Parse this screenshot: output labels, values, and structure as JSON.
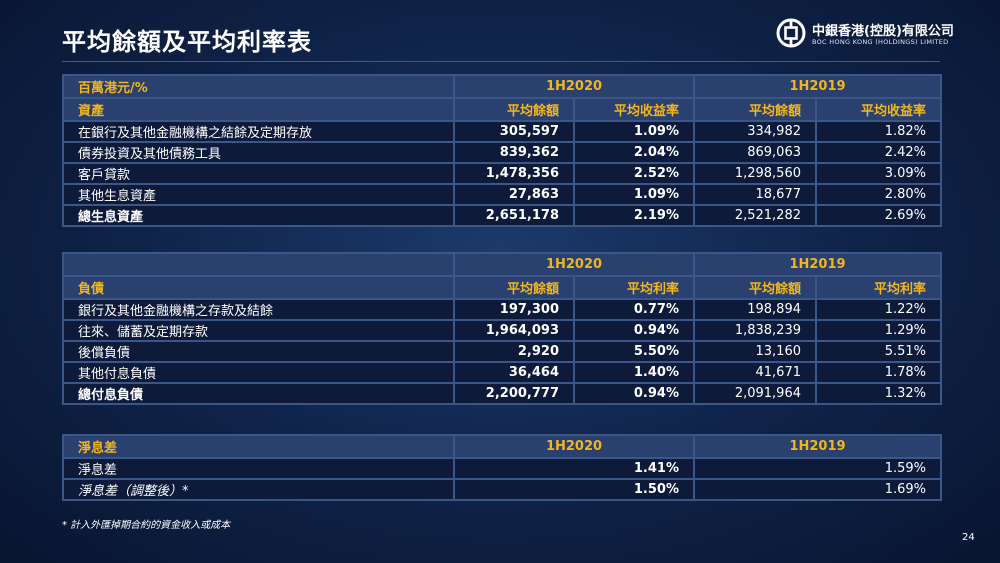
{
  "page": {
    "title": "平均餘額及平均利率表",
    "page_number": "24",
    "footnote": "* 計入外匯掉期合約的資金收入或成本"
  },
  "logo": {
    "name_cn": "中銀香港(控股)有限公司",
    "name_en": "BOC HONG KONG (HOLDINGS) LIMITED"
  },
  "assets": {
    "unit": "百萬港元/%",
    "period_current": "1H2020",
    "period_prior": "1H2019",
    "section_label": "資產",
    "col_balance": "平均餘額",
    "col_rate": "平均收益率",
    "rows": [
      {
        "label": "在銀行及其他金融機構之結餘及定期存放",
        "cur_bal": "305,597",
        "cur_rate": "1.09%",
        "pri_bal": "334,982",
        "pri_rate": "1.82%"
      },
      {
        "label": "債券投資及其他債務工具",
        "cur_bal": "839,362",
        "cur_rate": "2.04%",
        "pri_bal": "869,063",
        "pri_rate": "2.42%"
      },
      {
        "label": "客戶貸款",
        "cur_bal": "1,478,356",
        "cur_rate": "2.52%",
        "pri_bal": "1,298,560",
        "pri_rate": "3.09%"
      },
      {
        "label": "其他生息資產",
        "cur_bal": "27,863",
        "cur_rate": "1.09%",
        "pri_bal": "18,677",
        "pri_rate": "2.80%"
      },
      {
        "label": "總生息資產",
        "cur_bal": "2,651,178",
        "cur_rate": "2.19%",
        "pri_bal": "2,521,282",
        "pri_rate": "2.69%"
      }
    ]
  },
  "liabilities": {
    "period_current": "1H2020",
    "period_prior": "1H2019",
    "section_label": "負債",
    "col_balance": "平均餘額",
    "col_rate": "平均利率",
    "rows": [
      {
        "label": "銀行及其他金融機構之存款及結餘",
        "cur_bal": "197,300",
        "cur_rate": "0.77%",
        "pri_bal": "198,894",
        "pri_rate": "1.22%"
      },
      {
        "label": "往來、儲蓄及定期存款",
        "cur_bal": "1,964,093",
        "cur_rate": "0.94%",
        "pri_bal": "1,838,239",
        "pri_rate": "1.29%"
      },
      {
        "label": "後償負債",
        "cur_bal": "2,920",
        "cur_rate": "5.50%",
        "pri_bal": "13,160",
        "pri_rate": "5.51%"
      },
      {
        "label": "其他付息負債",
        "cur_bal": "36,464",
        "cur_rate": "1.40%",
        "pri_bal": "41,671",
        "pri_rate": "1.78%"
      },
      {
        "label": "總付息負債",
        "cur_bal": "2,200,777",
        "cur_rate": "0.94%",
        "pri_bal": "2,091,964",
        "pri_rate": "1.32%"
      }
    ]
  },
  "margin": {
    "section_label": "淨息差",
    "period_current": "1H2020",
    "period_prior": "1H2019",
    "rows": [
      {
        "label": "淨息差",
        "cur": "1.41%",
        "pri": "1.59%"
      },
      {
        "label": "淨息差（調整後）*",
        "cur": "1.50%",
        "pri": "1.69%"
      }
    ]
  }
}
